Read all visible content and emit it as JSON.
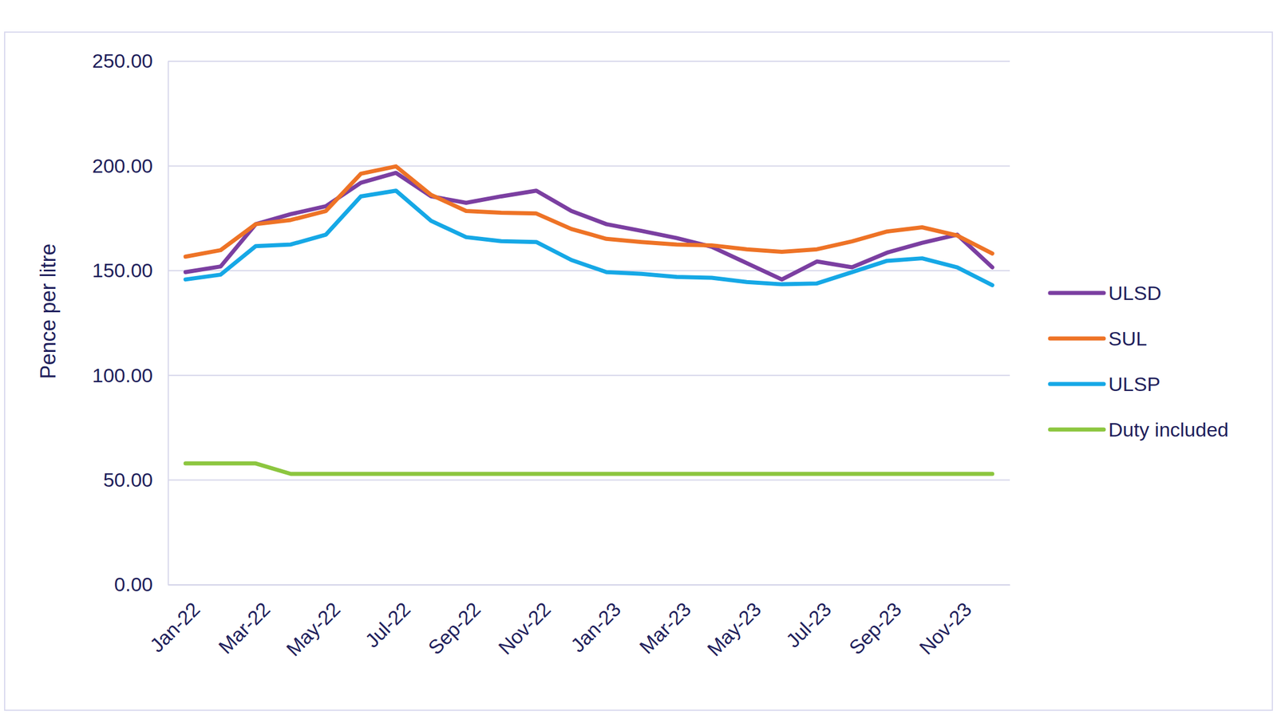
{
  "chart_data": {
    "type": "line",
    "y_label": "Pence per litre",
    "categories": [
      "Jan-22",
      null,
      "Mar-22",
      null,
      "May-22",
      null,
      "Jul-22",
      null,
      "Sep-22",
      null,
      "Nov-22",
      null,
      "Jan-23",
      null,
      "Mar-23",
      null,
      "May-23",
      null,
      "Jul-23",
      null,
      "Sep-23",
      null,
      "Nov-23",
      null
    ],
    "series": [
      {
        "name": "ULSD",
        "color": "#7b3fa1",
        "values": [
          149.3,
          152.0,
          172.2,
          177.0,
          180.8,
          192.0,
          196.7,
          185.5,
          182.4,
          185.5,
          188.2,
          178.5,
          172.2,
          169.0,
          165.6,
          161.4,
          153.6,
          145.8,
          154.4,
          151.6,
          158.6,
          163.3,
          167.2,
          151.6
        ]
      },
      {
        "name": "SUL",
        "color": "#ee7326",
        "values": [
          156.7,
          159.8,
          172.2,
          174.2,
          178.5,
          196.3,
          199.8,
          186.2,
          178.5,
          177.7,
          177.3,
          169.9,
          165.2,
          163.7,
          162.5,
          162.1,
          160.2,
          159.0,
          160.2,
          164.0,
          168.7,
          170.7,
          166.8,
          158.2
        ]
      },
      {
        "name": "ULSP",
        "color": "#16a8e6",
        "values": [
          145.8,
          148.1,
          161.7,
          162.5,
          167.2,
          185.5,
          188.2,
          173.8,
          166.0,
          164.1,
          163.7,
          155.1,
          149.3,
          148.5,
          147.0,
          146.6,
          144.6,
          143.5,
          143.9,
          149.3,
          154.7,
          155.9,
          151.6,
          143.1
        ]
      },
      {
        "name": "Duty included",
        "color": "#8cc63f",
        "values": [
          57.95,
          57.95,
          57.95,
          52.95,
          52.95,
          52.95,
          52.95,
          52.95,
          52.95,
          52.95,
          52.95,
          52.95,
          52.95,
          52.95,
          52.95,
          52.95,
          52.95,
          52.95,
          52.95,
          52.95,
          52.95,
          52.95,
          52.95,
          52.95
        ]
      }
    ],
    "ylim": [
      0,
      250
    ],
    "yticks": [
      {
        "value": 0,
        "label": "0.00"
      },
      {
        "value": 50,
        "label": "50.00"
      },
      {
        "value": 100,
        "label": "100.00"
      },
      {
        "value": 150,
        "label": "150.00"
      },
      {
        "value": 200,
        "label": "200.00"
      },
      {
        "value": 250,
        "label": "250.00"
      }
    ],
    "grid": true,
    "legend": "right"
  }
}
